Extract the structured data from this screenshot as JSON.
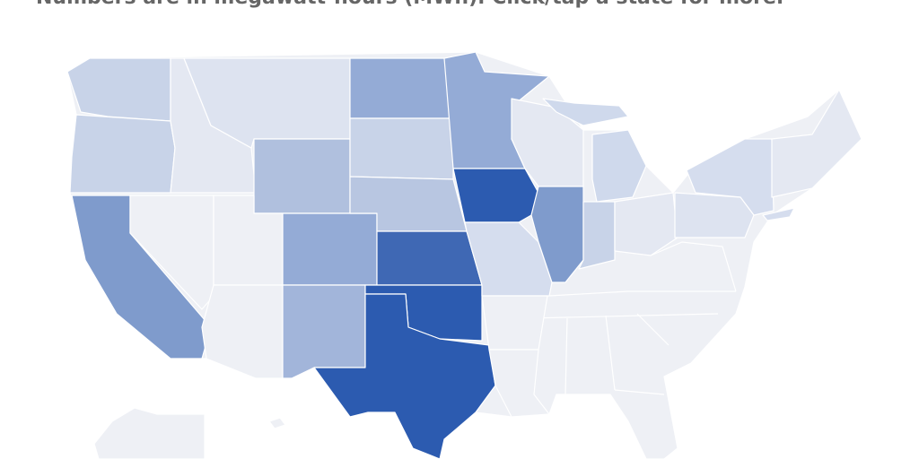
{
  "subtitle": "Numbers are in megawatt-hours (MWh). Click/tap a state for more."
}
